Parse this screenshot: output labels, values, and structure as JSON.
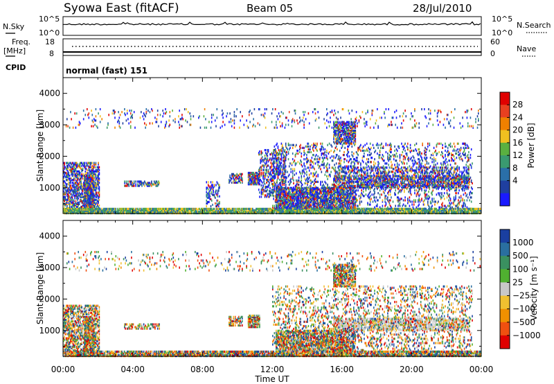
{
  "header": {
    "station": "Syowa East (fitACF)",
    "beam": "Beam 05",
    "date": "28/Jul/2010"
  },
  "top_panels": {
    "nsky_label": "N.Sky",
    "nsearch_label": "N.Search",
    "nsky_ticks": [
      "10^5",
      "10^0"
    ],
    "freq_label_1": "Freq.",
    "freq_label_2": "[MHz]",
    "freq_ticks": [
      "18",
      "8"
    ],
    "nave_ticks": [
      "60",
      "0"
    ],
    "nave_label": "Nave",
    "cpid_label": "CPID",
    "cpid_text": "normal (fast) 151"
  },
  "colors": {
    "power": [
      "#1a1aff",
      "#1f3fa0",
      "#2a6fa8",
      "#3a9a70",
      "#5ab040",
      "#f0c020",
      "#f08000",
      "#e84020",
      "#e00000"
    ],
    "velocity": [
      "#e00000",
      "#f05010",
      "#f09000",
      "#f0c030",
      "#c8c8c8",
      "#50b030",
      "#3a9060",
      "#2a6fa0",
      "#1a3fa0"
    ]
  },
  "chart_data": [
    {
      "type": "heatmap",
      "name": "power",
      "xlabel": "",
      "ylabel": "Slant Range [km]",
      "x_ticks": [
        "00:00",
        "04:00",
        "08:00",
        "12:00",
        "16:00",
        "20:00",
        "00:00"
      ],
      "xlim_hours": [
        0,
        24
      ],
      "ylim": [
        180,
        4500
      ],
      "y_ticks": [
        1000,
        2000,
        3000,
        4000
      ],
      "colorbar": {
        "label": "Power [dB]",
        "ticks": [
          "28",
          "24",
          "20",
          "16",
          "12",
          "8",
          "4"
        ],
        "range": [
          0,
          30
        ]
      },
      "regions": [
        {
          "t0": 0.0,
          "t1": 24.0,
          "r0": 180,
          "r1": 320,
          "density": 0.9
        },
        {
          "t0": 0.0,
          "t1": 2.1,
          "r0": 200,
          "r1": 1800,
          "density": 0.55
        },
        {
          "t0": 1.2,
          "t1": 1.8,
          "r0": 200,
          "r1": 1400,
          "density": 0.9
        },
        {
          "t0": 3.5,
          "t1": 5.5,
          "r0": 1050,
          "r1": 1200,
          "density": 0.5
        },
        {
          "t0": 8.2,
          "t1": 9.0,
          "r0": 400,
          "r1": 1200,
          "density": 0.3
        },
        {
          "t0": 9.5,
          "t1": 10.3,
          "r0": 1150,
          "r1": 1450,
          "density": 0.6
        },
        {
          "t0": 10.6,
          "t1": 11.3,
          "r0": 1100,
          "r1": 1500,
          "density": 0.85
        },
        {
          "t0": 11.2,
          "t1": 12.8,
          "r0": 700,
          "r1": 2200,
          "density": 0.35
        },
        {
          "t0": 12.2,
          "t1": 16.8,
          "r0": 350,
          "r1": 1000,
          "density": 0.7
        },
        {
          "t0": 15.5,
          "t1": 16.8,
          "r0": 2400,
          "r1": 3100,
          "density": 0.7
        },
        {
          "t0": 15.5,
          "t1": 23.3,
          "r0": 1000,
          "r1": 1400,
          "density": 0.6
        },
        {
          "t0": 15.5,
          "t1": 23.3,
          "r0": 1450,
          "r1": 1650,
          "density": 0.35
        },
        {
          "t0": 12.0,
          "t1": 23.5,
          "r0": 320,
          "r1": 2400,
          "density": 0.18
        },
        {
          "t0": 0.0,
          "t1": 24.0,
          "r0": 2900,
          "r1": 3500,
          "density": 0.06
        }
      ]
    },
    {
      "type": "heatmap",
      "name": "velocity",
      "xlabel": "Time UT",
      "ylabel": "Slant Range [km]",
      "x_ticks": [
        "00:00",
        "04:00",
        "08:00",
        "12:00",
        "16:00",
        "20:00",
        "00:00"
      ],
      "xlim_hours": [
        0,
        24
      ],
      "ylim": [
        180,
        4500
      ],
      "y_ticks": [
        1000,
        2000,
        3000,
        4000
      ],
      "colorbar": {
        "label": "Velocity [m s⁻¹]",
        "ticks": [
          "1000",
          "500",
          "100",
          "25",
          "−25",
          "−100",
          "−500",
          "−1000"
        ],
        "range": [
          -1000,
          1000
        ]
      },
      "regions": [
        {
          "t0": 0.0,
          "t1": 24.0,
          "r0": 180,
          "r1": 320,
          "density": 0.9
        },
        {
          "t0": 0.0,
          "t1": 2.1,
          "r0": 200,
          "r1": 1800,
          "density": 0.55
        },
        {
          "t0": 1.2,
          "t1": 1.8,
          "r0": 200,
          "r1": 1400,
          "density": 0.9
        },
        {
          "t0": 3.5,
          "t1": 5.5,
          "r0": 1050,
          "r1": 1200,
          "density": 0.5
        },
        {
          "t0": 9.5,
          "t1": 10.3,
          "r0": 1150,
          "r1": 1450,
          "density": 0.6
        },
        {
          "t0": 10.6,
          "t1": 11.3,
          "r0": 1100,
          "r1": 1500,
          "density": 0.85
        },
        {
          "t0": 12.2,
          "t1": 16.8,
          "r0": 350,
          "r1": 1000,
          "density": 0.7
        },
        {
          "t0": 15.5,
          "t1": 16.8,
          "r0": 2400,
          "r1": 3100,
          "density": 0.7
        },
        {
          "t0": 15.5,
          "t1": 23.3,
          "r0": 1000,
          "r1": 1400,
          "density": 0.6
        },
        {
          "t0": 12.0,
          "t1": 23.5,
          "r0": 320,
          "r1": 2400,
          "density": 0.18
        },
        {
          "t0": 0.0,
          "t1": 24.0,
          "r0": 2900,
          "r1": 3500,
          "density": 0.06
        }
      ]
    }
  ]
}
